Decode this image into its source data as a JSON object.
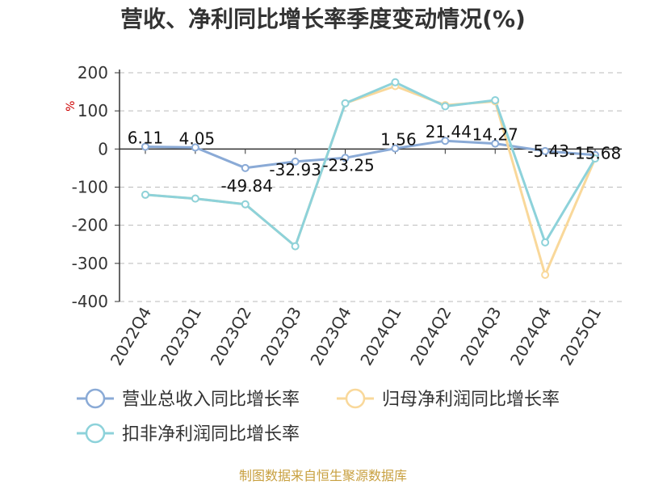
{
  "colors": {
    "series_1": "#8aaad6",
    "series_2": "#f9d89a",
    "series_3": "#8dd2da",
    "grid": "#bbbbbb",
    "axis": "#333333",
    "ylabel": "#cc0000",
    "source": "#c8a040"
  },
  "chart_data": {
    "type": "line",
    "title": "营收、净利同比增长率季度变动情况(%)",
    "ylabel": "%",
    "xlabel": "",
    "categories": [
      "2022Q4",
      "2023Q1",
      "2023Q2",
      "2023Q3",
      "2023Q4",
      "2024Q1",
      "2024Q2",
      "2024Q3",
      "2024Q4",
      "2025Q1"
    ],
    "ylim": [
      -400,
      200
    ],
    "yticks": [
      200,
      100,
      0,
      -100,
      -200,
      -300,
      -400
    ],
    "grid": true,
    "legend_position": "bottom",
    "series": [
      {
        "name": "营业总收入同比增长率",
        "values": [
          6.11,
          4.05,
          -49.84,
          -32.93,
          -23.25,
          1.56,
          21.44,
          14.27,
          -5.43,
          -15.68
        ],
        "data_labels": [
          "6.11",
          "4.05",
          "-49.84",
          "-32.93",
          "-23.25",
          "1.56",
          "21.44",
          "14.27",
          "-5.43",
          "-15.68"
        ]
      },
      {
        "name": "归母净利润同比增长率",
        "values": [
          -120,
          -130,
          -145,
          -255,
          120,
          165,
          115,
          125,
          -330,
          -25
        ]
      },
      {
        "name": "扣非净利润同比增长率",
        "values": [
          -120,
          -130,
          -145,
          -255,
          120,
          175,
          112,
          128,
          -245,
          -25
        ]
      }
    ],
    "source": "制图数据来自恒生聚源数据库"
  }
}
